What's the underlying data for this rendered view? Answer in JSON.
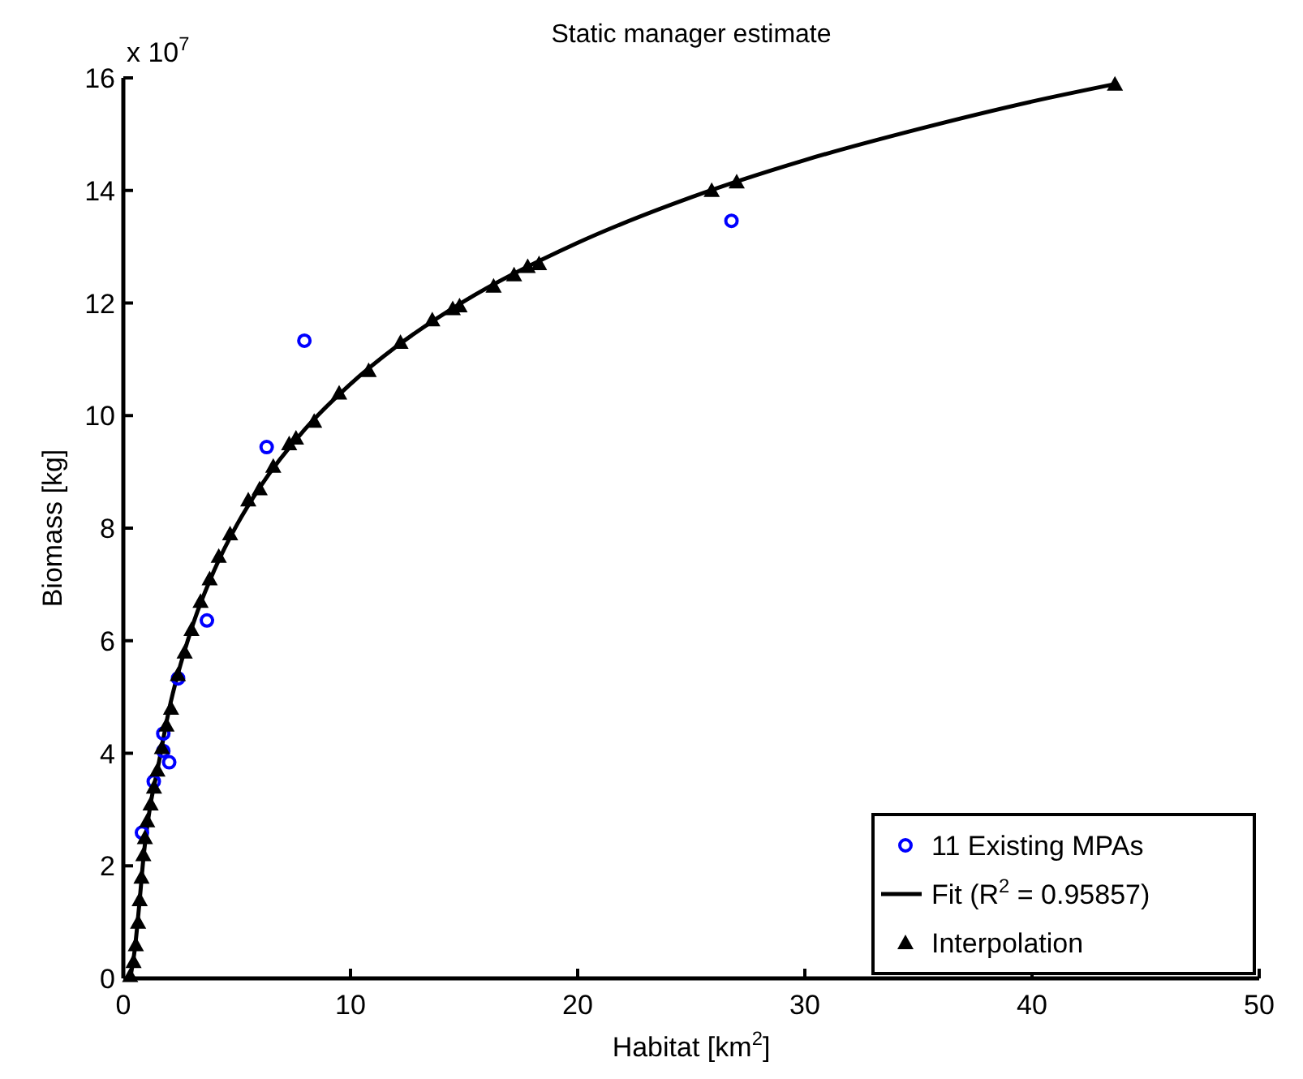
{
  "chart_data": {
    "type": "scatter",
    "title": "Static manager estimate",
    "xlabel": "Habitat [km$^{2}$]",
    "ylabel": "Biomass [kg]",
    "annotations": [
      "x 10$^{7}$"
    ],
    "xlim": [
      0,
      50
    ],
    "xticks": [
      0,
      10,
      20,
      30,
      40,
      50
    ],
    "ylim": [
      0,
      16
    ],
    "yticks": [
      0,
      2,
      4,
      6,
      8,
      10,
      12,
      14,
      16
    ],
    "grid": false,
    "legend": "bottom right",
    "series": [
      {
        "name": "11 Existing MPAs",
        "marker": "circle",
        "color": "#0000ff",
        "x": [
          0.82,
          1.34,
          1.76,
          1.76,
          2.02,
          2.41,
          3.68,
          6.31,
          7.97,
          26.77
        ],
        "values": [
          2.59,
          3.5,
          4.35,
          4.04,
          3.84,
          5.33,
          6.36,
          9.44,
          11.33,
          13.46
        ]
      },
      {
        "name": "Fit (R$^{2}$ = 0.95857)",
        "type": "line",
        "marker": "none",
        "line_style": "solid",
        "color": "#000000",
        "x": [
          0.3,
          0.5,
          0.7,
          0.9,
          1.2,
          1.5,
          2,
          3,
          4,
          5,
          6,
          8,
          10,
          12,
          15,
          20,
          25,
          30,
          35,
          40,
          43.65
        ],
        "values": [
          0,
          0.5,
          1.3,
          2.2,
          3.1,
          3.7,
          4.75,
          6.21,
          7.25,
          8.06,
          8.72,
          9.76,
          10.56,
          11.22,
          12.03,
          13.07,
          13.88,
          14.54,
          15.09,
          15.58,
          15.89
        ]
      },
      {
        "name": "Interpolation",
        "marker": "triangle",
        "color": "#000000",
        "x": [
          0.3,
          0.45,
          0.55,
          0.65,
          0.72,
          0.8,
          0.88,
          0.95,
          1.05,
          1.2,
          1.35,
          1.5,
          1.7,
          1.9,
          2.1,
          2.4,
          2.7,
          3.0,
          3.4,
          3.8,
          4.2,
          4.7,
          5.5,
          6.0,
          6.6,
          7.3,
          7.6,
          8.4,
          9.5,
          10.8,
          12.2,
          13.6,
          14.5,
          14.8,
          16.3,
          17.2,
          17.8,
          18.3,
          25.9,
          27.0,
          43.65
        ],
        "values": [
          0.05,
          0.3,
          0.6,
          1.0,
          1.4,
          1.8,
          2.2,
          2.5,
          2.8,
          3.1,
          3.4,
          3.7,
          4.1,
          4.5,
          4.8,
          5.4,
          5.8,
          6.2,
          6.7,
          7.1,
          7.5,
          7.9,
          8.5,
          8.7,
          9.1,
          9.5,
          9.6,
          9.9,
          10.4,
          10.8,
          11.3,
          11.7,
          11.9,
          11.95,
          12.3,
          12.5,
          12.65,
          12.7,
          14.0,
          14.15,
          15.89
        ]
      }
    ]
  }
}
